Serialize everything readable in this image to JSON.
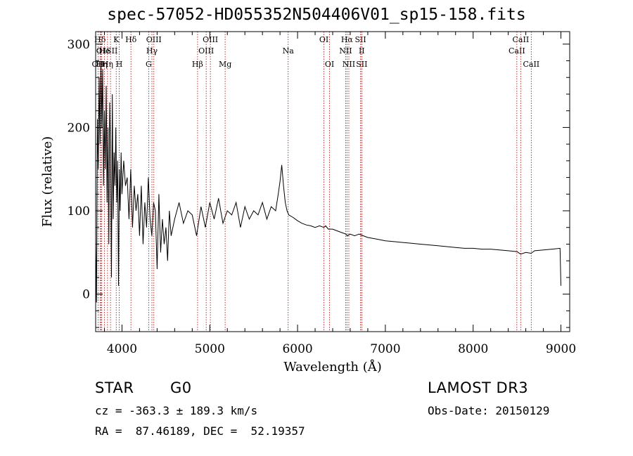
{
  "chart_data": {
    "type": "line",
    "title": "spec-57052-HD055352N504406V01_sp15-158.fits",
    "xlabel": "Wavelength (Å)",
    "ylabel": "Flux (relative)",
    "xlim": [
      3700,
      9100
    ],
    "ylim": [
      -45,
      315
    ],
    "xticks": [
      4000,
      5000,
      6000,
      7000,
      8000,
      9000
    ],
    "yticks": [
      0,
      100,
      200,
      300
    ],
    "series": [
      {
        "name": "flux",
        "x": [
          3700,
          3710,
          3720,
          3730,
          3740,
          3750,
          3760,
          3770,
          3780,
          3790,
          3800,
          3810,
          3820,
          3830,
          3840,
          3850,
          3860,
          3870,
          3880,
          3890,
          3900,
          3910,
          3920,
          3930,
          3940,
          3950,
          3960,
          3970,
          3980,
          3990,
          4000,
          4020,
          4040,
          4060,
          4080,
          4100,
          4120,
          4140,
          4160,
          4180,
          4200,
          4220,
          4240,
          4260,
          4280,
          4300,
          4320,
          4340,
          4360,
          4380,
          4400,
          4420,
          4440,
          4460,
          4480,
          4500,
          4520,
          4540,
          4560,
          4600,
          4650,
          4700,
          4750,
          4800,
          4850,
          4900,
          4950,
          5000,
          5050,
          5100,
          5150,
          5200,
          5250,
          5300,
          5350,
          5400,
          5450,
          5500,
          5550,
          5600,
          5650,
          5700,
          5750,
          5780,
          5800,
          5820,
          5840,
          5860,
          5880,
          5900,
          5950,
          6000,
          6050,
          6100,
          6150,
          6200,
          6250,
          6300,
          6320,
          6350,
          6400,
          6450,
          6500,
          6550,
          6565,
          6600,
          6650,
          6700,
          6750,
          6800,
          6900,
          7000,
          7100,
          7200,
          7300,
          7400,
          7500,
          7600,
          7700,
          7800,
          7900,
          8000,
          8100,
          8200,
          8300,
          8400,
          8500,
          8540,
          8600,
          8660,
          8700,
          8800,
          8900,
          8990,
          9000
        ],
        "y": [
          60,
          -10,
          210,
          150,
          260,
          180,
          280,
          200,
          270,
          130,
          220,
          150,
          250,
          110,
          200,
          60,
          230,
          180,
          20,
          240,
          90,
          170,
          130,
          200,
          110,
          160,
          10,
          150,
          100,
          170,
          120,
          160,
          130,
          140,
          90,
          150,
          80,
          130,
          100,
          120,
          70,
          130,
          60,
          110,
          80,
          140,
          90,
          70,
          110,
          100,
          30,
          120,
          50,
          90,
          60,
          80,
          40,
          100,
          70,
          90,
          110,
          85,
          100,
          95,
          70,
          105,
          80,
          110,
          90,
          115,
          85,
          100,
          95,
          110,
          80,
          105,
          90,
          100,
          95,
          110,
          90,
          105,
          100,
          120,
          135,
          155,
          130,
          110,
          100,
          95,
          92,
          88,
          85,
          83,
          82,
          80,
          82,
          80,
          82,
          78,
          78,
          76,
          74,
          72,
          70,
          72,
          70,
          72,
          70,
          68,
          66,
          64,
          63,
          62,
          61,
          60,
          59,
          58,
          57,
          56,
          55,
          55,
          54,
          54,
          53,
          52,
          51,
          48,
          50,
          49,
          52,
          53,
          54,
          55,
          10
        ]
      }
    ],
    "lines": [
      {
        "wl": 3727,
        "row": 2,
        "label": "OII"
      },
      {
        "wl": 3750,
        "row": 0,
        "label": "Hδ"
      },
      {
        "wl": 3760,
        "row": 1,
        "label": "OI"
      },
      {
        "wl": 3770,
        "row": 2,
        "label": "Hη"
      },
      {
        "wl": 3800,
        "row": 1,
        "label": "He"
      },
      {
        "wl": 3835,
        "row": 2,
        "label": "Hη"
      },
      {
        "wl": 3869,
        "row": 1,
        "label": "ISII"
      },
      {
        "wl": 3934,
        "row": 0,
        "label": "K"
      },
      {
        "wl": 3969,
        "row": 2,
        "label": "H"
      },
      {
        "wl": 4102,
        "row": 0,
        "label": "Hδ"
      },
      {
        "wl": 4304,
        "row": 2,
        "label": "G"
      },
      {
        "wl": 4341,
        "row": 1,
        "label": "Hγ"
      },
      {
        "wl": 4363,
        "row": 0,
        "label": "OIII"
      },
      {
        "wl": 4861,
        "row": 2,
        "label": "Hβ"
      },
      {
        "wl": 4959,
        "row": 1,
        "label": "OIII"
      },
      {
        "wl": 5007,
        "row": 0,
        "label": "OIII"
      },
      {
        "wl": 5175,
        "row": 2,
        "label": "Mg"
      },
      {
        "wl": 5893,
        "row": 1,
        "label": "Na"
      },
      {
        "wl": 6300,
        "row": 0,
        "label": "OI"
      },
      {
        "wl": 6364,
        "row": 2,
        "label": "OI"
      },
      {
        "wl": 6548,
        "row": 1,
        "label": "NII"
      },
      {
        "wl": 6563,
        "row": 0,
        "label": "Hα"
      },
      {
        "wl": 6584,
        "row": 2,
        "label": "NII"
      },
      {
        "wl": 6717,
        "row": 0,
        "label": "SII"
      },
      {
        "wl": 6731,
        "row": 2,
        "label": "SII"
      },
      {
        "wl": 6731,
        "row": 1,
        "label": "II"
      },
      {
        "wl": 8498,
        "row": 1,
        "label": "CaII"
      },
      {
        "wl": 8542,
        "row": 0,
        "label": "CaII"
      },
      {
        "wl": 8662,
        "row": 2,
        "label": "CaII"
      }
    ]
  },
  "info": {
    "obj_class": "STAR",
    "subclass": "G0",
    "survey": "LAMOST DR3",
    "cz": "cz = -363.3 ± 189.3 km/s",
    "obs_date": "Obs-Date: 20150129",
    "coords": "RA =  87.46189, DEC =  52.19357"
  },
  "colors": {
    "spectrum": "#000000",
    "line_marker": "#aa0000"
  }
}
